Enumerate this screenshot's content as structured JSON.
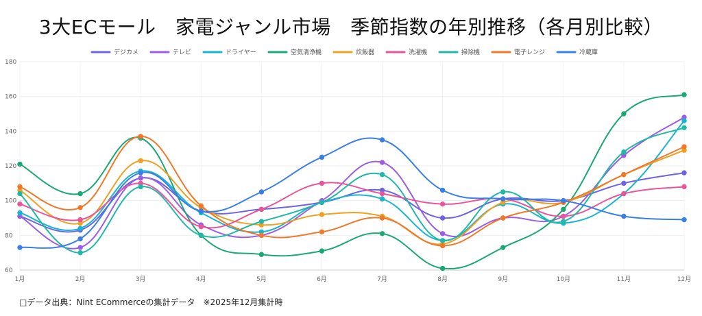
{
  "title": "3大ECモール　家電ジャンル市場　季節指数の年別推移（各月別比較）",
  "footer": "□データ出典：Nint ECommerceの集計データ　※2025年12月集計時",
  "chart_data": {
    "type": "line",
    "title": "3大ECモール　家電ジャンル市場　季節指数の年別推移（各月別比較）",
    "xlabel": "",
    "ylabel": "",
    "categories": [
      "1月",
      "2月",
      "3月",
      "4月",
      "5月",
      "6月",
      "7月",
      "8月",
      "9月",
      "10月",
      "11月",
      "12月"
    ],
    "ylim": [
      60,
      180
    ],
    "yticks": [
      60,
      80,
      100,
      120,
      140,
      160,
      180
    ],
    "grid": true,
    "legend_position": "top",
    "series": [
      {
        "name": "デジカメ",
        "color": "#6c63e6",
        "values": [
          91,
          83,
          113,
          94,
          95,
          99,
          106,
          90,
          101,
          100,
          110,
          116
        ]
      },
      {
        "name": "テレビ",
        "color": "#9b5de5",
        "values": [
          91,
          73,
          113,
          86,
          80,
          100,
          122,
          81,
          90,
          91,
          126,
          148
        ]
      },
      {
        "name": "ドライヤー",
        "color": "#17b5cf",
        "values": [
          93,
          84,
          117,
          93,
          82,
          99,
          101,
          77,
          98,
          87,
          104,
          146
        ]
      },
      {
        "name": "空気清浄機",
        "color": "#1aa874",
        "values": [
          121,
          104,
          136,
          80,
          69,
          71,
          81,
          61,
          73,
          95,
          150,
          161
        ]
      },
      {
        "name": "炊飯器",
        "color": "#f0a020",
        "values": [
          106,
          87,
          123,
          96,
          86,
          92,
          91,
          75,
          99,
          99,
          115,
          129
        ]
      },
      {
        "name": "洗濯機",
        "color": "#e8559b",
        "values": [
          98,
          89,
          110,
          85,
          95,
          110,
          104,
          98,
          101,
          91,
          104,
          108
        ]
      },
      {
        "name": "掃除機",
        "color": "#20b8a8",
        "values": [
          104,
          70,
          108,
          80,
          88,
          99,
          115,
          77,
          105,
          88,
          128,
          142
        ]
      },
      {
        "name": "電子レンジ",
        "color": "#f07828",
        "values": [
          108,
          96,
          137,
          97,
          80,
          82,
          90,
          74,
          90,
          99,
          115,
          131
        ]
      },
      {
        "name": "冷蔵庫",
        "color": "#3a7fe6",
        "values": [
          73,
          78,
          116,
          94,
          105,
          125,
          135,
          106,
          101,
          100,
          91,
          89
        ]
      }
    ]
  }
}
